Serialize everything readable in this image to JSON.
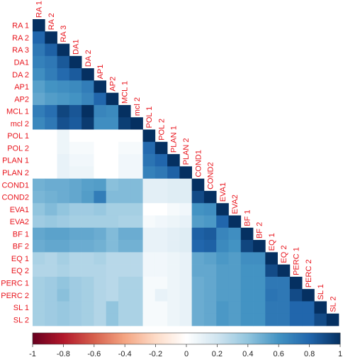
{
  "chart_data": {
    "type": "heatmap",
    "subtype": "correlation-lower-triangle",
    "variables": [
      "RA 1",
      "RA 2",
      "RA 3",
      "DA1",
      "DA 2",
      "AP1",
      "AP2",
      "MCL 1",
      "mcl 2",
      "POL 1",
      "POL 2",
      "PLAN 1",
      "PLAN 2",
      "COND1",
      "COND2",
      "EVA1",
      "EVA2",
      "BF 1",
      "BF 2",
      "EQ 1",
      "EQ 2",
      "PERC 1",
      "PERC 2",
      "SL 1",
      "SL 2"
    ],
    "matrix": [
      [
        1
      ],
      [
        0.8,
        1
      ],
      [
        0.72,
        0.82,
        1
      ],
      [
        0.68,
        0.72,
        0.85,
        1
      ],
      [
        0.62,
        0.7,
        0.78,
        0.84,
        1
      ],
      [
        0.55,
        0.6,
        0.62,
        0.64,
        0.7,
        1
      ],
      [
        0.52,
        0.56,
        0.58,
        0.6,
        0.66,
        0.8,
        1
      ],
      [
        0.7,
        0.76,
        0.92,
        0.86,
        1.0,
        0.66,
        0.64,
        1
      ],
      [
        0.65,
        0.72,
        0.88,
        0.84,
        0.96,
        0.62,
        0.62,
        0.95,
        1
      ],
      [
        0.0,
        0.0,
        0.08,
        0.0,
        0.0,
        0.0,
        0.0,
        0.0,
        0.0,
        1
      ],
      [
        0.0,
        0.0,
        0.08,
        0.04,
        0.04,
        0.0,
        0.0,
        0.04,
        0.04,
        0.78,
        1
      ],
      [
        0.0,
        0.0,
        0.1,
        0.06,
        0.06,
        0.0,
        0.0,
        0.06,
        0.06,
        0.74,
        0.8,
        1
      ],
      [
        0.0,
        0.0,
        0.1,
        0.08,
        0.08,
        0.0,
        0.0,
        0.06,
        0.06,
        0.68,
        0.72,
        0.82,
        1
      ],
      [
        0.48,
        0.5,
        0.5,
        0.52,
        0.55,
        0.56,
        0.42,
        0.44,
        0.44,
        0.12,
        0.12,
        0.14,
        0.14,
        1
      ],
      [
        0.46,
        0.48,
        0.5,
        0.52,
        0.56,
        0.7,
        0.44,
        0.44,
        0.44,
        0.12,
        0.12,
        0.14,
        0.14,
        0.9,
        1
      ],
      [
        0.4,
        0.44,
        0.4,
        0.36,
        0.36,
        0.38,
        0.34,
        0.34,
        0.34,
        0.0,
        0.0,
        0.04,
        0.06,
        0.6,
        0.62,
        1
      ],
      [
        0.36,
        0.38,
        0.36,
        0.34,
        0.34,
        0.34,
        0.34,
        0.32,
        0.32,
        0.04,
        0.06,
        0.08,
        0.1,
        0.56,
        0.58,
        0.8,
        1
      ],
      [
        0.52,
        0.54,
        0.54,
        0.52,
        0.52,
        0.5,
        0.44,
        0.5,
        0.5,
        0.1,
        0.1,
        0.12,
        0.14,
        0.82,
        0.84,
        0.66,
        0.62,
        1
      ],
      [
        0.5,
        0.52,
        0.52,
        0.5,
        0.5,
        0.48,
        0.44,
        0.48,
        0.48,
        0.1,
        0.1,
        0.12,
        0.14,
        0.8,
        0.82,
        0.64,
        0.6,
        0.92,
        1
      ],
      [
        0.32,
        0.3,
        0.34,
        0.3,
        0.3,
        0.32,
        0.28,
        0.28,
        0.28,
        0.06,
        0.06,
        0.08,
        0.1,
        0.52,
        0.54,
        0.58,
        0.56,
        0.62,
        0.62,
        1
      ],
      [
        0.3,
        0.3,
        0.32,
        0.3,
        0.3,
        0.3,
        0.28,
        0.28,
        0.28,
        0.06,
        0.06,
        0.08,
        0.1,
        0.52,
        0.52,
        0.56,
        0.56,
        0.6,
        0.6,
        0.9,
        1
      ],
      [
        0.34,
        0.36,
        0.4,
        0.36,
        0.34,
        0.3,
        0.28,
        0.32,
        0.32,
        0.04,
        0.04,
        0.08,
        0.1,
        0.5,
        0.52,
        0.56,
        0.56,
        0.6,
        0.6,
        0.72,
        0.72,
        1
      ],
      [
        0.34,
        0.36,
        0.42,
        0.36,
        0.34,
        0.3,
        0.28,
        0.32,
        0.32,
        0.04,
        0.1,
        0.08,
        0.1,
        0.5,
        0.52,
        0.56,
        0.56,
        0.6,
        0.6,
        0.74,
        0.72,
        0.9,
        1
      ],
      [
        0.34,
        0.36,
        0.38,
        0.36,
        0.34,
        0.3,
        0.4,
        0.32,
        0.32,
        0.04,
        0.04,
        0.08,
        0.1,
        0.5,
        0.52,
        0.58,
        0.56,
        0.6,
        0.6,
        0.72,
        0.72,
        0.8,
        0.8,
        1
      ],
      [
        0.34,
        0.36,
        0.38,
        0.36,
        0.34,
        0.3,
        0.4,
        0.32,
        0.32,
        0.04,
        0.04,
        0.08,
        0.1,
        0.5,
        0.52,
        0.58,
        0.56,
        0.6,
        0.6,
        0.72,
        0.72,
        0.8,
        0.8,
        0.9,
        1
      ]
    ],
    "colorbar": {
      "min": -1,
      "max": 1,
      "ticks": [
        -1,
        -0.8,
        -0.6,
        -0.4,
        -0.2,
        0,
        0.2,
        0.4,
        0.6,
        0.8,
        1
      ],
      "tick_labels": [
        "-1",
        "-0.8",
        "-0.6",
        "-0.4",
        "-0.2",
        "0",
        "0.2",
        "0.4",
        "0.6",
        "0.8",
        "1"
      ]
    },
    "colors": {
      "label": "#e8141c",
      "tick": "#222222",
      "palette": [
        "#67001f",
        "#b2182b",
        "#d6604d",
        "#f4a582",
        "#fddbc7",
        "#ffffff",
        "#d1e5f0",
        "#92c5de",
        "#4393c3",
        "#2166ac",
        "#053061"
      ]
    }
  }
}
